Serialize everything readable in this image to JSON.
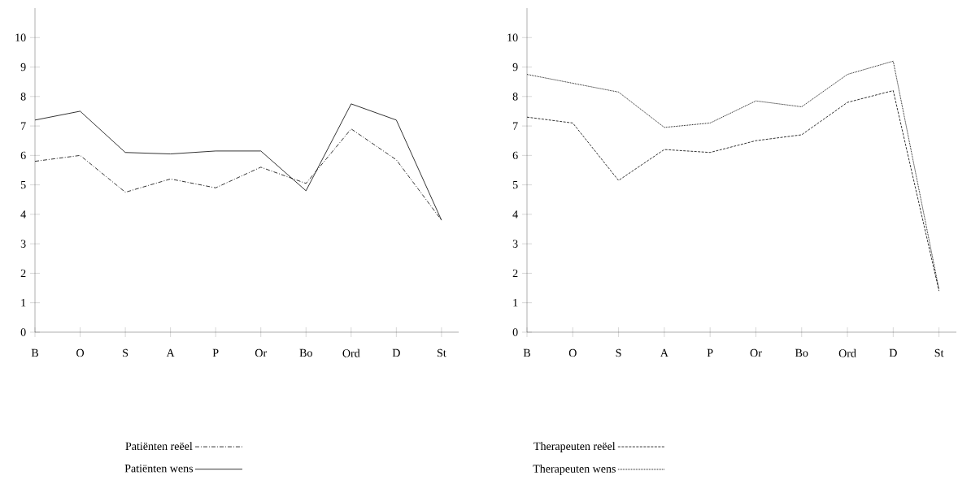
{
  "chart_data": [
    {
      "type": "line",
      "categories": [
        "B",
        "O",
        "S",
        "A",
        "P",
        "Or",
        "Bo",
        "Ord",
        "D",
        "St"
      ],
      "ylim": [
        0,
        11
      ],
      "yticks": [
        0,
        1,
        2,
        3,
        4,
        5,
        6,
        7,
        8,
        9,
        10
      ],
      "legend": "bottom",
      "series": [
        {
          "name": "Patiënten reëel",
          "color": "#000000",
          "line_style": "dashdot",
          "values": [
            5.8,
            6.0,
            4.75,
            5.2,
            4.9,
            5.6,
            5.05,
            6.9,
            5.85,
            3.8
          ]
        },
        {
          "name": "Patiënten wens",
          "color": "#000000",
          "line_style": "solid",
          "values": [
            7.2,
            7.5,
            6.1,
            6.05,
            6.15,
            6.15,
            4.8,
            7.75,
            7.2,
            3.8
          ]
        }
      ]
    },
    {
      "type": "line",
      "categories": [
        "B",
        "O",
        "S",
        "A",
        "P",
        "Or",
        "Bo",
        "Ord",
        "D",
        "St"
      ],
      "ylim": [
        0,
        11
      ],
      "yticks": [
        0,
        1,
        2,
        3,
        4,
        5,
        6,
        7,
        8,
        9,
        10
      ],
      "legend": "bottom",
      "series": [
        {
          "name": "Therapeuten reëel",
          "color": "#000000",
          "line_style": "dashed",
          "values": [
            7.3,
            7.1,
            5.15,
            6.2,
            6.1,
            6.5,
            6.7,
            7.8,
            8.2,
            1.4
          ]
        },
        {
          "name": "Therapeuten wens",
          "color": "#000000",
          "line_style": "dotted",
          "values": [
            8.75,
            8.45,
            8.15,
            6.95,
            7.1,
            7.85,
            7.65,
            8.75,
            9.2,
            1.45
          ]
        }
      ]
    }
  ]
}
